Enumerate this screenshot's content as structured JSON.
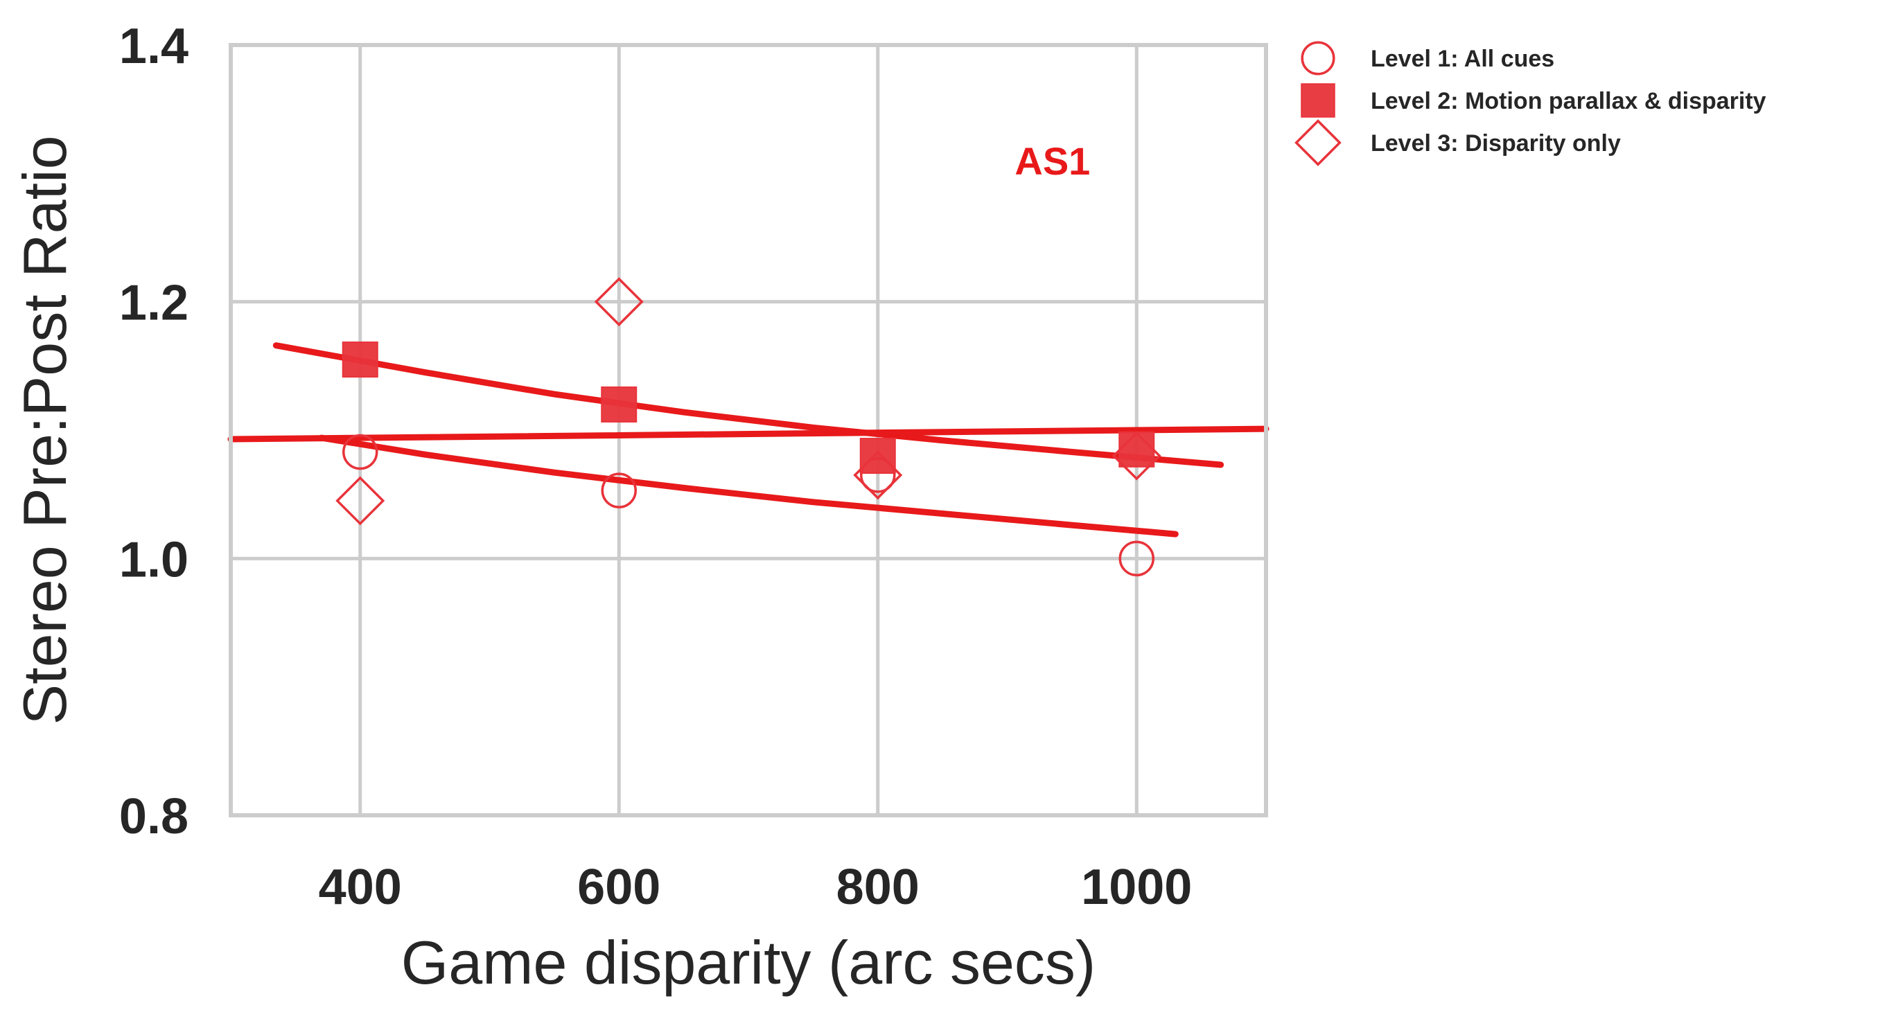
{
  "chart_data": {
    "type": "scatter",
    "xlabel": "Game disparity (arc secs)",
    "ylabel": "Stereo Pre:Post Ratio",
    "xlim": [
      300,
      1100
    ],
    "ylim": [
      0.8,
      1.4
    ],
    "xticks": [
      400,
      600,
      800,
      1000
    ],
    "yticks": [
      0.8,
      1.0,
      1.2,
      1.4
    ],
    "xtick_labels": [
      "400",
      "600",
      "800",
      "1000"
    ],
    "ytick_labels": [
      "0.8",
      "1.0",
      "1.2",
      "1.4"
    ],
    "grid": true,
    "legend_position": "outside-top-right",
    "annotation": {
      "text": "AS1",
      "x": 935,
      "y": 1.31,
      "color": "#e8191a"
    },
    "colors": {
      "marker": "#e8333a",
      "fit": "#e8191a",
      "grid": "#cccccc",
      "text": "#262626"
    },
    "series": [
      {
        "name": "Level 1: All cues",
        "marker": "circle-open",
        "x": [
          400,
          600,
          800,
          1000
        ],
        "y": [
          1.083,
          1.053,
          1.065,
          1.0
        ]
      },
      {
        "name": "Level 2: Motion parallax & disparity",
        "marker": "square-filled",
        "x": [
          400,
          600,
          800,
          1000
        ],
        "y": [
          1.155,
          1.12,
          1.08,
          1.085
        ]
      },
      {
        "name": "Level 3: Disparity only",
        "marker": "diamond-open",
        "x": [
          400,
          600,
          800,
          1000
        ],
        "y": [
          1.045,
          1.2,
          1.065,
          1.08
        ]
      }
    ],
    "fit_lines": [
      {
        "x": [
          370,
          450,
          550,
          650,
          750,
          850,
          950,
          1030
        ],
        "y": [
          1.094,
          1.081,
          1.067,
          1.055,
          1.044,
          1.035,
          1.026,
          1.019
        ]
      },
      {
        "x": [
          335,
          450,
          550,
          650,
          750,
          850,
          950,
          1065
        ],
        "y": [
          1.166,
          1.145,
          1.128,
          1.114,
          1.102,
          1.092,
          1.083,
          1.073
        ]
      },
      {
        "x": [
          300,
          1100
        ],
        "y": [
          1.093,
          1.101
        ]
      }
    ]
  }
}
